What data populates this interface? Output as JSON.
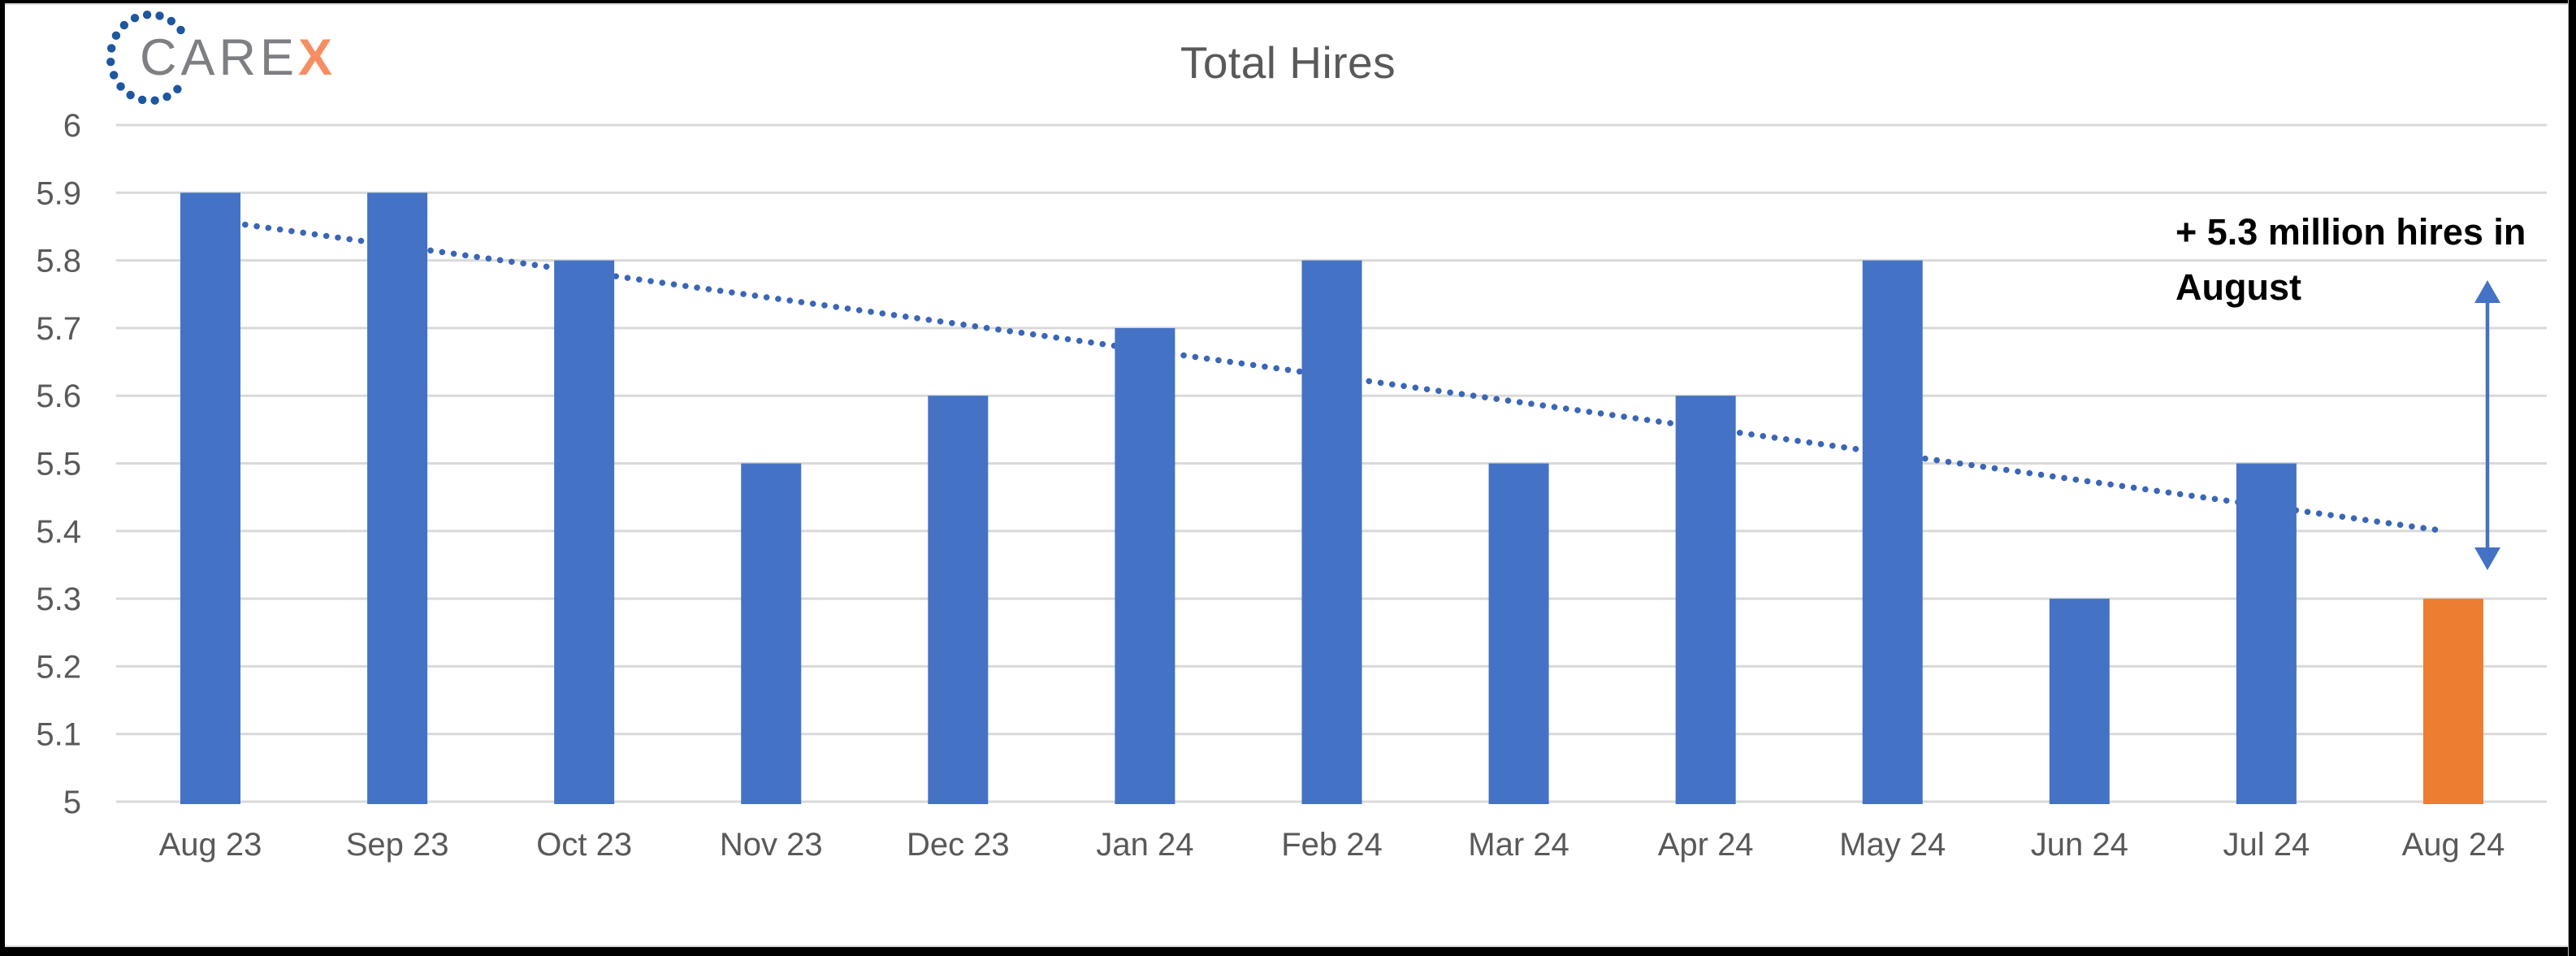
{
  "window": {
    "background": "#FFFFFF",
    "frame_color": "#000000"
  },
  "logo": {
    "care_text": "CARE",
    "x_text": "X",
    "care_color": "#7D7F82",
    "x_color": "#F78E63",
    "dot_color": "#1E56A0"
  },
  "chart_data": {
    "type": "bar",
    "title": "Total Hires",
    "categories": [
      "Aug 23",
      "Sep 23",
      "Oct 23",
      "Nov 23",
      "Dec 23",
      "Jan 24",
      "Feb 24",
      "Mar 24",
      "Apr 24",
      "May 24",
      "Jun 24",
      "Jul 24",
      "Aug 24"
    ],
    "values": [
      5.9,
      5.9,
      5.8,
      5.5,
      5.6,
      5.7,
      5.8,
      5.5,
      5.6,
      5.8,
      5.3,
      5.5,
      5.3
    ],
    "highlight_index": 12,
    "bar_color": "#4472C4",
    "highlight_color": "#ED7D31",
    "xlabel": "",
    "ylabel": "",
    "ylim": [
      5,
      6
    ],
    "ytick_labels": [
      "6",
      "5.9",
      "5.8",
      "5.7",
      "5.6",
      "5.5",
      "5.4",
      "5.3",
      "5.2",
      "5.1",
      "5"
    ],
    "grid": true,
    "gridline_color": "#D9D9D9",
    "axis_text_color": "#595959",
    "legend": "none",
    "trendline": {
      "style": "dotted",
      "color": "#3A66B8",
      "start_value": 5.86,
      "end_value": 5.4
    },
    "annotation": {
      "line1": "+ 5.3 million hires in",
      "line2": "August",
      "color": "#000000",
      "arrow_color": "#4472C4"
    }
  }
}
